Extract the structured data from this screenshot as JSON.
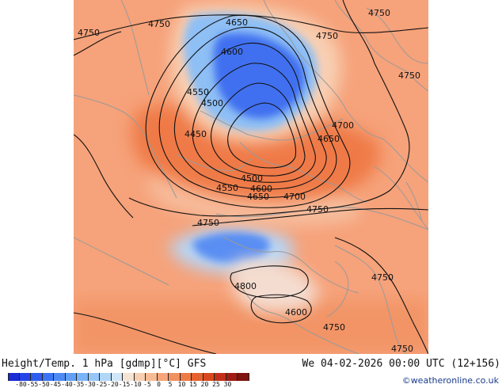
{
  "map": {
    "contour_labels": [
      "4750",
      "4750",
      "4650",
      "4750",
      "4750",
      "4600",
      "4750",
      "4550",
      "4500",
      "4700",
      "4450",
      "4650",
      "4500",
      "4550",
      "4600",
      "4650",
      "4700",
      "4750",
      "4750",
      "4800",
      "4750",
      "4600",
      "4750",
      "4750"
    ]
  },
  "footer": {
    "title_left": "Height/Temp. 1 hPa [gdmp][°C] GFS",
    "title_right": "We 04-02-2026 00:00 UTC (12+156)",
    "credit": "©weatheronline.co.uk"
  },
  "colorbar": {
    "labels": [
      "-80",
      "-55",
      "-50",
      "-45",
      "-40",
      "-35",
      "-30",
      "-25",
      "-20",
      "-15",
      "-10",
      "-5",
      "0",
      "5",
      "10",
      "15",
      "20",
      "25",
      "30"
    ],
    "colors": [
      "#1a2bd6",
      "#2444e6",
      "#2f5cee",
      "#3c74f2",
      "#4d8af4",
      "#62a0f6",
      "#7ab4f8",
      "#94c6f8",
      "#b0d6f8",
      "#cfe6f8",
      "#f4e4d4",
      "#f8cfb0",
      "#f8bc94",
      "#f6a67a",
      "#f29060",
      "#ee7a46",
      "#e6622e",
      "#d8481e",
      "#c2301a",
      "#a01c14",
      "#7e1410"
    ]
  }
}
